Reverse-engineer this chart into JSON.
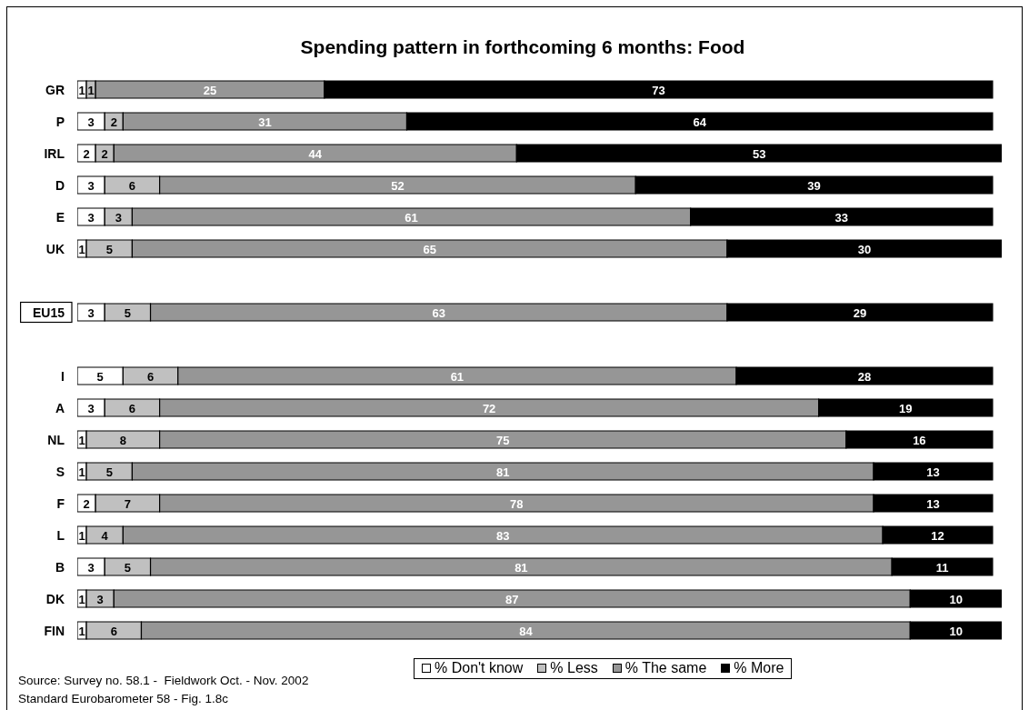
{
  "chart_data": {
    "type": "bar",
    "orientation": "horizontal",
    "stacked": true,
    "title": "Spending pattern in forthcoming 6 months: Food",
    "annotations": [
      "Source: Survey no. 58.1 -  Fieldwork Oct. - Nov. 2002",
      "Standard Eurobarometer 58 - Fig. 1.8c"
    ],
    "categories": [
      "GR",
      "P",
      "IRL",
      "D",
      "E",
      "UK",
      null,
      "EU15",
      null,
      "I",
      "A",
      "NL",
      "S",
      "F",
      "L",
      "B",
      "DK",
      "FIN"
    ],
    "series": [
      {
        "name": "% Don't know",
        "color": "#ffffff",
        "values": [
          1,
          3,
          2,
          3,
          3,
          1,
          null,
          3,
          null,
          5,
          3,
          1,
          1,
          2,
          1,
          3,
          1,
          1
        ]
      },
      {
        "name": "% Less",
        "color": "#c0c0c0",
        "values": [
          1,
          2,
          2,
          6,
          3,
          5,
          null,
          5,
          null,
          6,
          6,
          8,
          5,
          7,
          4,
          5,
          3,
          6
        ]
      },
      {
        "name": "% The same",
        "color": "#969696",
        "values": [
          25,
          31,
          44,
          52,
          61,
          65,
          null,
          63,
          null,
          61,
          72,
          75,
          81,
          78,
          83,
          81,
          87,
          84
        ]
      },
      {
        "name": "% More",
        "color": "#000000",
        "values": [
          73,
          64,
          53,
          39,
          33,
          30,
          null,
          29,
          null,
          28,
          19,
          16,
          13,
          13,
          12,
          11,
          10,
          10
        ]
      }
    ],
    "data_labels": true,
    "legend": "bottom",
    "tick_labels": "y"
  }
}
